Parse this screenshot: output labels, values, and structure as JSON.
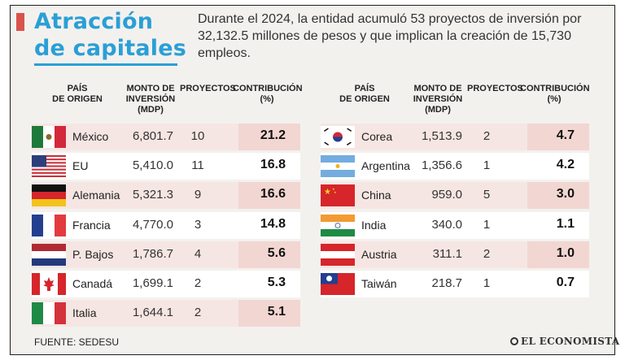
{
  "title": {
    "line1": "Atracción",
    "line2": "de capitales"
  },
  "description": "Durante el 2024,  la entidad acumuló 53 proyectos de inversión por 32,132.5 millones de pesos y que implican la creación de 15,730 empleos.",
  "headers": {
    "pais": "PAÍS DE ORIGEN",
    "monto": "MONTO DE INVERSIÓN (MDP)",
    "proyectos": "PROYECTOS",
    "contribucion": "CONTRIBUCIÓN (%)"
  },
  "left_table": [
    {
      "country": "México",
      "flag": "mexico-flag",
      "monto": "6,801.7",
      "proyectos": "10",
      "contribucion": "21.2"
    },
    {
      "country": "EU",
      "flag": "usa-flag",
      "monto": "5,410.0",
      "proyectos": "11",
      "contribucion": "16.8"
    },
    {
      "country": "Alemania",
      "flag": "germany-flag",
      "monto": "5,321.3",
      "proyectos": "9",
      "contribucion": "16.6"
    },
    {
      "country": "Francia",
      "flag": "france-flag",
      "monto": "4,770.0",
      "proyectos": "3",
      "contribucion": "14.8"
    },
    {
      "country": "P. Bajos",
      "flag": "netherlands-flag",
      "monto": "1,786.7",
      "proyectos": "4",
      "contribucion": "5.6"
    },
    {
      "country": "Canadá",
      "flag": "canada-flag",
      "monto": "1,699.1",
      "proyectos": "2",
      "contribucion": "5.3"
    },
    {
      "country": "Italia",
      "flag": "italy-flag",
      "monto": "1,644.1",
      "proyectos": "2",
      "contribucion": "5.1"
    }
  ],
  "right_table": [
    {
      "country": "Corea",
      "flag": "korea-flag",
      "monto": "1,513.9",
      "proyectos": "2",
      "contribucion": "4.7"
    },
    {
      "country": "Argentina",
      "flag": "argentina-flag",
      "monto": "1,356.6",
      "proyectos": "1",
      "contribucion": "4.2"
    },
    {
      "country": "China",
      "flag": "china-flag",
      "monto": "959.0",
      "proyectos": "5",
      "contribucion": "3.0"
    },
    {
      "country": "India",
      "flag": "india-flag",
      "monto": "340.0",
      "proyectos": "1",
      "contribucion": "1.1"
    },
    {
      "country": "Austria",
      "flag": "austria-flag",
      "monto": "311.1",
      "proyectos": "2",
      "contribucion": "1.0"
    },
    {
      "country": "Taiwán",
      "flag": "taiwan-flag",
      "monto": "218.7",
      "proyectos": "1",
      "contribucion": "0.7"
    }
  ],
  "source": "FUENTE: SEDESU",
  "logo": "EL ECONOMISTA",
  "colors": {
    "accent": "#2a9fd7",
    "red_bar": "#d9534b",
    "row_bg": "#f6e6e3",
    "contrib_bg": "#f2d6d2"
  }
}
